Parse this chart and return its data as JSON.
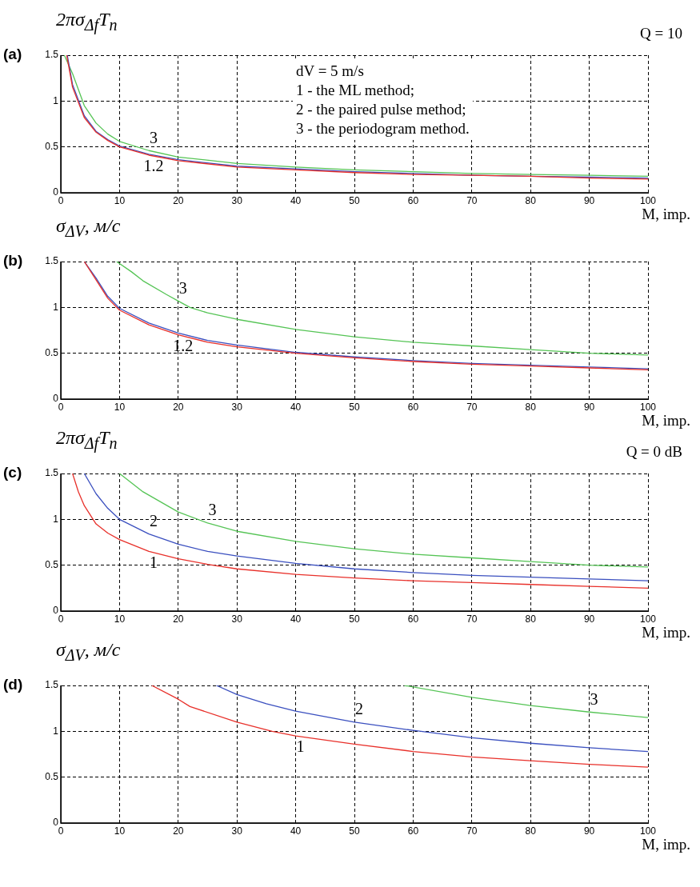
{
  "chart_data": [
    {
      "type": "line",
      "title": "(a)",
      "ylabel": "2πσ$_{Δf}$T$_{n}$",
      "xlabel": "M, imp.",
      "xlim": [
        0,
        100
      ],
      "ylim": [
        0,
        1.5
      ],
      "xticks": [
        0,
        10,
        20,
        30,
        40,
        50,
        60,
        70,
        80,
        90,
        100
      ],
      "yticks": [
        0,
        0.5,
        1,
        1.5
      ],
      "grid": true,
      "legend": false,
      "annotations": [
        "Q = 10",
        "dV = 5 m/s",
        "1 - the ML method;",
        "2 - the paired pulse method;",
        "3 - the periodogram method.",
        {
          "text": "3",
          "x": 15,
          "y": 0.46
        },
        {
          "text": "1.2",
          "x": 15,
          "y": 0.41
        }
      ],
      "series": [
        {
          "color": "#e8302a",
          "x": [
            1,
            2,
            4,
            6,
            8,
            10,
            15,
            20,
            30,
            40,
            50,
            60,
            70,
            80,
            90,
            100
          ],
          "values": [
            1.5,
            1.15,
            0.82,
            0.66,
            0.57,
            0.5,
            0.41,
            0.35,
            0.28,
            0.25,
            0.22,
            0.2,
            0.19,
            0.18,
            0.16,
            0.15
          ]
        },
        {
          "color": "#3a4fbf",
          "x": [
            1.1,
            2,
            4,
            6,
            8,
            10,
            15,
            20,
            30,
            40,
            50,
            60,
            70,
            80,
            90,
            100
          ],
          "values": [
            1.5,
            1.18,
            0.84,
            0.67,
            0.58,
            0.51,
            0.42,
            0.36,
            0.29,
            0.26,
            0.23,
            0.21,
            0.19,
            0.18,
            0.17,
            0.16
          ]
        },
        {
          "color": "#55c455",
          "x": [
            0.6,
            2,
            4,
            6,
            8,
            10,
            15,
            20,
            30,
            40,
            50,
            60,
            70,
            80,
            90,
            100
          ],
          "values": [
            1.5,
            1.3,
            0.95,
            0.76,
            0.64,
            0.56,
            0.46,
            0.39,
            0.32,
            0.28,
            0.25,
            0.23,
            0.21,
            0.2,
            0.19,
            0.18
          ]
        }
      ]
    },
    {
      "type": "line",
      "title": "(b)",
      "ylabel": "σ$_{ΔV}$, м/с",
      "xlabel": "M, imp.",
      "xlim": [
        0,
        100
      ],
      "ylim": [
        0,
        1.5
      ],
      "xticks": [
        0,
        10,
        20,
        30,
        40,
        50,
        60,
        70,
        80,
        90,
        100
      ],
      "yticks": [
        0,
        0.5,
        1,
        1.5
      ],
      "grid": true,
      "legend": false,
      "annotations": [
        {
          "text": "3",
          "x": 20,
          "y": 1.07
        },
        {
          "text": "1.2",
          "x": 20,
          "y": 0.7
        }
      ],
      "series": [
        {
          "color": "#e8302a",
          "x": [
            4,
            6,
            8,
            10,
            15,
            20,
            25,
            30,
            40,
            50,
            60,
            70,
            80,
            90,
            100
          ],
          "values": [
            1.5,
            1.3,
            1.1,
            0.97,
            0.81,
            0.7,
            0.62,
            0.57,
            0.5,
            0.45,
            0.41,
            0.38,
            0.36,
            0.34,
            0.32
          ]
        },
        {
          "color": "#3a4fbf",
          "x": [
            4,
            6,
            8,
            10,
            15,
            20,
            25,
            30,
            40,
            50,
            60,
            70,
            80,
            90,
            100
          ],
          "values": [
            1.5,
            1.32,
            1.12,
            0.99,
            0.83,
            0.72,
            0.64,
            0.59,
            0.51,
            0.46,
            0.42,
            0.39,
            0.37,
            0.35,
            0.33
          ]
        },
        {
          "color": "#55c455",
          "x": [
            9.5,
            12,
            14,
            18,
            20,
            22,
            25,
            30,
            40,
            50,
            60,
            70,
            80,
            90,
            100
          ],
          "values": [
            1.5,
            1.39,
            1.29,
            1.14,
            1.07,
            1.0,
            0.94,
            0.87,
            0.76,
            0.68,
            0.62,
            0.58,
            0.54,
            0.5,
            0.48
          ]
        }
      ]
    },
    {
      "type": "line",
      "title": "(c)",
      "ylabel": "2πσ$_{Δf}$T$_{n}$",
      "xlabel": "M, imp.",
      "xlim": [
        0,
        100
      ],
      "ylim": [
        0,
        1.5
      ],
      "xticks": [
        0,
        10,
        20,
        30,
        40,
        50,
        60,
        70,
        80,
        90,
        100
      ],
      "yticks": [
        0,
        0.5,
        1,
        1.5
      ],
      "grid": true,
      "legend": false,
      "annotations": [
        "Q = 0 dB",
        {
          "text": "3",
          "x": 25,
          "y": 0.96
        },
        {
          "text": "2",
          "x": 15,
          "y": 0.84
        },
        {
          "text": "1",
          "x": 15,
          "y": 0.65
        }
      ],
      "series": [
        {
          "color": "#e8302a",
          "x": [
            2,
            3,
            4,
            6,
            8,
            10,
            15,
            20,
            25,
            30,
            40,
            50,
            60,
            70,
            80,
            90,
            100
          ],
          "values": [
            1.5,
            1.3,
            1.15,
            0.95,
            0.85,
            0.78,
            0.65,
            0.57,
            0.51,
            0.46,
            0.4,
            0.36,
            0.33,
            0.31,
            0.29,
            0.27,
            0.25
          ]
        },
        {
          "color": "#3a4fbf",
          "x": [
            4,
            6,
            8,
            10,
            15,
            20,
            25,
            30,
            40,
            50,
            60,
            70,
            80,
            90,
            100
          ],
          "values": [
            1.5,
            1.28,
            1.12,
            1.0,
            0.84,
            0.73,
            0.65,
            0.6,
            0.52,
            0.46,
            0.42,
            0.39,
            0.37,
            0.35,
            0.33
          ]
        },
        {
          "color": "#55c455",
          "x": [
            10,
            14,
            20,
            25,
            30,
            40,
            50,
            60,
            70,
            80,
            90,
            100
          ],
          "values": [
            1.5,
            1.3,
            1.08,
            0.96,
            0.87,
            0.76,
            0.68,
            0.62,
            0.58,
            0.54,
            0.5,
            0.48
          ]
        }
      ]
    },
    {
      "type": "line",
      "title": "(d)",
      "ylabel": "σ$_{ΔV}$, м/с",
      "xlabel": "M, imp.",
      "xlim": [
        0,
        100
      ],
      "ylim": [
        0,
        1.5
      ],
      "xticks": [
        0,
        10,
        20,
        30,
        40,
        50,
        60,
        70,
        80,
        90,
        100
      ],
      "yticks": [
        0,
        0.5,
        1,
        1.5
      ],
      "grid": true,
      "legend": false,
      "annotations": [
        {
          "text": "2",
          "x": 50,
          "y": 1.1
        },
        {
          "text": "1",
          "x": 40,
          "y": 0.95
        },
        {
          "text": "3",
          "x": 90,
          "y": 1.21
        }
      ],
      "series": [
        {
          "color": "#e8302a",
          "x": [
            15.5,
            20,
            22,
            30,
            36,
            40,
            50,
            60,
            70,
            80,
            90,
            100
          ],
          "values": [
            1.5,
            1.35,
            1.27,
            1.1,
            1.0,
            0.95,
            0.86,
            0.78,
            0.72,
            0.68,
            0.64,
            0.61
          ]
        },
        {
          "color": "#3a4fbf",
          "x": [
            26.5,
            30,
            35,
            40,
            50,
            60,
            70,
            80,
            90,
            100
          ],
          "values": [
            1.5,
            1.4,
            1.3,
            1.22,
            1.1,
            1.01,
            0.93,
            0.87,
            0.82,
            0.78
          ]
        },
        {
          "color": "#55c455",
          "x": [
            58.5,
            70,
            80,
            90,
            100
          ],
          "values": [
            1.5,
            1.37,
            1.28,
            1.21,
            1.15
          ]
        }
      ]
    }
  ]
}
